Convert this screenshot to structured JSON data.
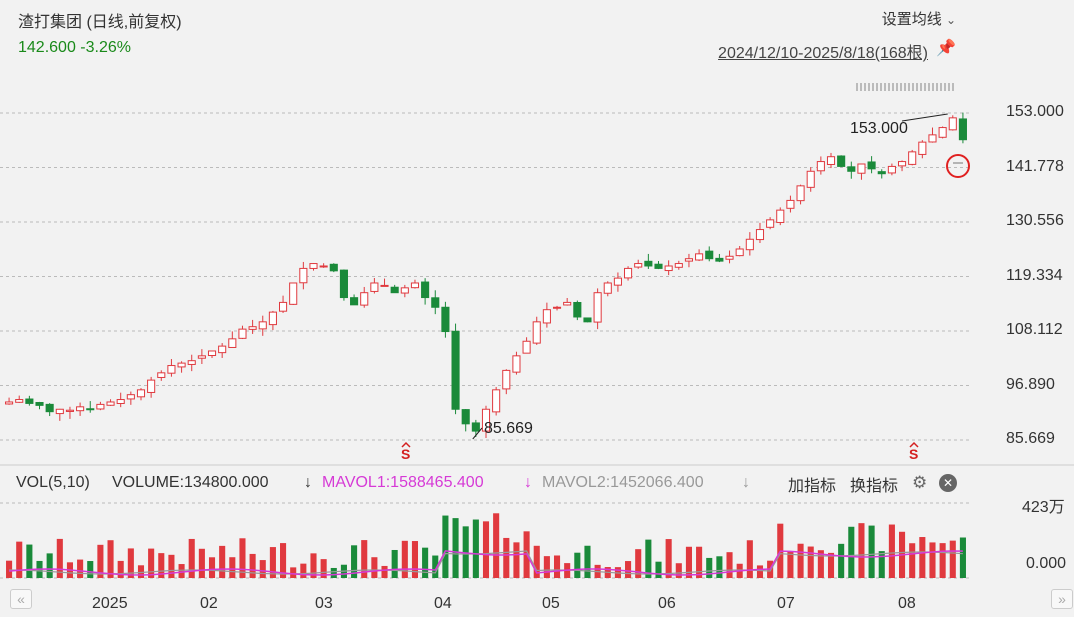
{
  "header": {
    "title": "渣打集团 (日线,前复权)",
    "price": "142.600",
    "change": "-3.26%",
    "settings_label": "设置均线",
    "settings_chevron": "⌄",
    "date_range": "2024/12/10-2025/8/18(168根)"
  },
  "volume_bar": {
    "vol_label": "VOL(5,10)",
    "volume_text": "VOLUME:134800.000",
    "mavol1_text": "MAVOL1:1588465.400",
    "mavol2_text": "MAVOL2:1452066.400",
    "arrow": "↓",
    "add_indicator": "加指标",
    "switch_indicator": "换指标",
    "vol_max_label": "423万",
    "vol_zero_label": "0.000"
  },
  "nav": {
    "prev": "«",
    "next": "»"
  },
  "colors": {
    "up": "#e0393e",
    "down": "#1a8a3a",
    "mavol1": "#d63ad6",
    "mavol2": "#999999"
  },
  "chart_data": {
    "type": "candlestick",
    "y_ticks": [
      "153.000",
      "141.778",
      "130.556",
      "119.334",
      "108.112",
      "96.890",
      "85.669"
    ],
    "ylim": [
      85.669,
      153.0
    ],
    "x_labels": [
      "2025",
      "02",
      "03",
      "04",
      "05",
      "06",
      "07",
      "08"
    ],
    "annotations": {
      "high": "153.000",
      "low": "85.669",
      "marker": "S"
    },
    "close_path": [
      93.5,
      94.0,
      93.2,
      92.8,
      91.5,
      92.0,
      91.8,
      92.5,
      92.0,
      93.0,
      93.5,
      94.0,
      95.0,
      96.0,
      98.0,
      99.5,
      101.0,
      101.5,
      102.0,
      103.0,
      104.0,
      105.0,
      106.5,
      108.5,
      109.0,
      110.0,
      112.0,
      114.0,
      118.0,
      121.0,
      122.0,
      121.5,
      120.5,
      115.0,
      113.5,
      116.0,
      118.0,
      117.5,
      116.0,
      117.0,
      118.0,
      115.0,
      113.0,
      108.0,
      92.0,
      89.0,
      87.5,
      92.0,
      96.0,
      100.0,
      103.0,
      106.0,
      110.0,
      112.5,
      113.0,
      114.0,
      111.0,
      110.0,
      116.0,
      118.0,
      119.0,
      121.0,
      122.0,
      121.5,
      121.0,
      121.5,
      122.0,
      123.0,
      124.0,
      123.0,
      122.5,
      123.5,
      125.0,
      127.0,
      129.0,
      131.0,
      133.0,
      135.0,
      138.0,
      141.0,
      143.0,
      144.0,
      142.0,
      141.0,
      142.5,
      141.5,
      140.5,
      142.0,
      143.0,
      145.0,
      147.0,
      148.5,
      150.0,
      152.0,
      147.5
    ],
    "volume_max": "423万"
  }
}
